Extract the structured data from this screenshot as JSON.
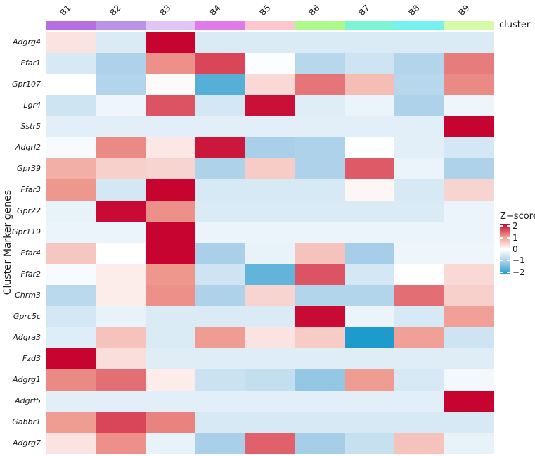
{
  "chart_data": {
    "type": "heatmap",
    "ylabel": "Cluster Marker genes",
    "cluster_label": "cluster",
    "columns": [
      "B1",
      "B2",
      "B3",
      "B4",
      "B5",
      "B6",
      "B7",
      "B8",
      "B9"
    ],
    "cluster_colors": [
      "#b470e0",
      "#bb93e8",
      "#e0c5f2",
      "#e07ae8",
      "#fdc7cd",
      "#aef98b",
      "#7ef4d7",
      "#75f1ef",
      "#d3fba8"
    ],
    "rows": [
      "Adgrg4",
      "Ffar1",
      "Gpr107",
      "Lgr4",
      "Sstr5",
      "Adgrl2",
      "Gpr39",
      "Ffar3",
      "Gpr22",
      "Gpr119",
      "Ffar4",
      "Ffar2",
      "Chrm3",
      "Gprc5c",
      "Adgra3",
      "Fzd3",
      "Adgrg1",
      "Adgrf5",
      "Gabbr1",
      "Adgrg7"
    ],
    "z": [
      [
        0.3,
        -0.45,
        2.2,
        -0.45,
        -0.45,
        -0.45,
        -0.45,
        -0.45,
        -0.45
      ],
      [
        -0.5,
        -1.0,
        1.15,
        1.7,
        -0.05,
        -0.9,
        -0.6,
        -0.95,
        1.3
      ],
      [
        0.0,
        -0.95,
        0.05,
        -1.75,
        0.4,
        1.35,
        0.7,
        -0.9,
        1.2
      ],
      [
        -0.6,
        -0.2,
        1.6,
        -0.55,
        2.1,
        -0.4,
        -0.25,
        -1.0,
        -0.2
      ],
      [
        -0.35,
        -0.35,
        -0.35,
        -0.35,
        -0.35,
        -0.35,
        -0.35,
        -0.35,
        2.2
      ],
      [
        -0.1,
        1.2,
        0.25,
        2.05,
        -1.05,
        -1.0,
        0.0,
        -0.35,
        -0.55
      ],
      [
        0.85,
        0.5,
        0.45,
        -1.0,
        0.55,
        -1.0,
        1.55,
        -0.25,
        -1.0
      ],
      [
        1.1,
        -0.55,
        2.2,
        -0.5,
        -0.5,
        -0.5,
        0.1,
        -0.5,
        0.45
      ],
      [
        -0.3,
        2.15,
        1.15,
        -0.45,
        -0.45,
        -0.45,
        -0.45,
        -0.45,
        -0.25
      ],
      [
        -0.25,
        -0.25,
        2.2,
        -0.25,
        -0.25,
        -0.25,
        -0.25,
        -0.25,
        -0.25
      ],
      [
        0.6,
        0.0,
        2.2,
        -1.05,
        -0.3,
        0.65,
        -1.1,
        -0.2,
        -0.2
      ],
      [
        -0.1,
        0.2,
        1.1,
        -0.6,
        -1.65,
        1.6,
        -0.55,
        0.0,
        0.4
      ],
      [
        -0.85,
        0.2,
        1.15,
        -1.0,
        0.45,
        -0.95,
        -0.95,
        1.4,
        0.5
      ],
      [
        -0.55,
        -0.3,
        -0.45,
        -0.45,
        -0.45,
        2.15,
        -0.25,
        -0.5,
        1.0
      ],
      [
        -0.4,
        0.65,
        -0.45,
        1.05,
        0.3,
        0.55,
        -2.2,
        1.0,
        -0.6
      ],
      [
        2.2,
        0.35,
        -0.4,
        -0.4,
        -0.4,
        -0.4,
        -0.4,
        -0.4,
        -0.4
      ],
      [
        1.2,
        1.4,
        0.2,
        -0.65,
        -0.75,
        -1.25,
        1.05,
        -0.5,
        -0.15
      ],
      [
        -0.35,
        -0.35,
        -0.35,
        -0.35,
        -0.35,
        -0.35,
        -0.35,
        -0.35,
        2.2
      ],
      [
        1.05,
        1.7,
        1.25,
        -0.5,
        -0.5,
        -0.5,
        -0.5,
        -0.5,
        -0.5
      ],
      [
        0.3,
        1.15,
        -0.3,
        -1.05,
        1.5,
        -1.1,
        -0.7,
        0.65,
        -0.3
      ]
    ],
    "legend": {
      "title": "Z−score",
      "ticks": [
        2,
        1,
        0,
        -1,
        -2
      ],
      "tick_labels": [
        "2",
        "1",
        "0",
        "−1",
        "−2"
      ],
      "cap": 2.2
    },
    "palette": {
      "max_red": "#c70330",
      "mid_red": "#ee978d",
      "zero_white": "#ffffff",
      "mid_blue": "#a6cee8",
      "max_blue": "#1f9acc"
    }
  }
}
